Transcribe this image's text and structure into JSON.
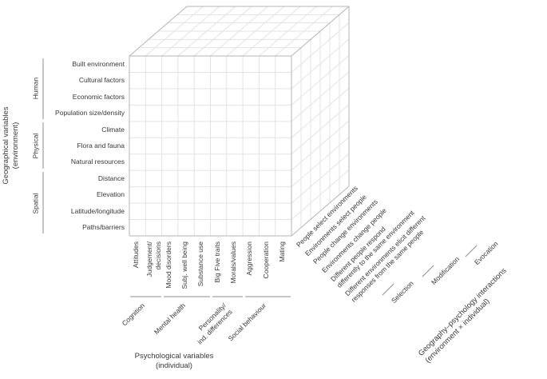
{
  "figure": {
    "type": "3d-cube-framework-diagram"
  },
  "y_axis": {
    "title": "Geographical variables\n(environment)",
    "groups": [
      "Human",
      "Physical",
      "Spatial"
    ],
    "items": [
      "Built environment",
      "Cultural factors",
      "Economic factors",
      "Population size/density",
      "Climate",
      "Flora and fauna",
      "Natural resources",
      "Distance",
      "Elevation",
      "Latitude/longitude",
      "Paths/barriers"
    ]
  },
  "x_axis": {
    "title": "Psychological variables\n(individual)",
    "groups": [
      "Cognition",
      "Mental health",
      "Personality/\nind. differences",
      "Social behaviour"
    ],
    "items": [
      "Attitudes",
      "Judgement/\ndecisions",
      "Mood disorders",
      "Subj. well being",
      "Substance use",
      "Big Five traits",
      "Morals/values",
      "Aggression",
      "Cooperation",
      "Mating"
    ]
  },
  "z_axis": {
    "title": "Geography–psychology interactions\n(environment × individual)",
    "groups": [
      "Selection",
      "Modification",
      "Evocation"
    ],
    "items": [
      "People select environments",
      "Environments select people",
      "People change environments",
      "Environments change people",
      "Different people respond\ndifferently to the same environment",
      "Different environments elicit different\nresponses from the same people"
    ]
  },
  "colors": {
    "text": "#383838",
    "grid": "#e3e3e3",
    "edge": "#b5b5b5",
    "bracket": "#8c8c8c",
    "background": "#ffffff"
  }
}
